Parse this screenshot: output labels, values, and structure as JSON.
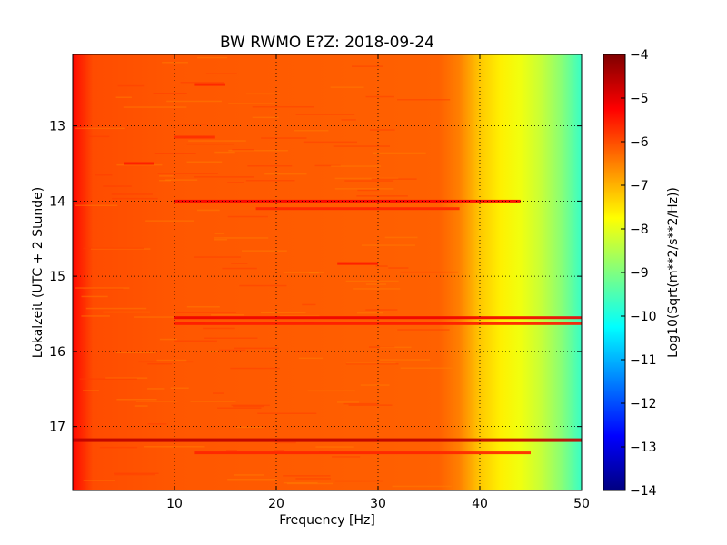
{
  "chart_data": {
    "type": "heatmap",
    "title": "BW RWMO E?Z: 2018-09-24",
    "xlabel": "Frequency [Hz]",
    "ylabel": "Lokalzeit (UTC + 2 Stunde)",
    "colorbar_label": "Log10(Sqrt(m**2/s**2/Hz))",
    "xlim": [
      0,
      50
    ],
    "ylim": [
      17.85,
      12.05
    ],
    "y_inverted": true,
    "clim": [
      -14,
      -4
    ],
    "colormap": "jet",
    "grid": true,
    "x_ticks": [
      10,
      20,
      30,
      40,
      50
    ],
    "x_tick_labels": [
      "10",
      "20",
      "30",
      "40",
      "50"
    ],
    "y_ticks": [
      13,
      14,
      15,
      16,
      17
    ],
    "y_tick_labels": [
      "13",
      "14",
      "15",
      "16",
      "17"
    ],
    "colorbar_ticks": [
      -4,
      -5,
      -6,
      -7,
      -8,
      -9,
      -10,
      -11,
      -12,
      -13,
      -14
    ],
    "colorbar_tick_labels": [
      "−4",
      "−5",
      "−6",
      "−7",
      "−8",
      "−9",
      "−10",
      "−11",
      "−12",
      "−13",
      "−14"
    ],
    "frequency_profile": [
      {
        "f": 0.0,
        "v": -5.3
      },
      {
        "f": 0.5,
        "v": -5.5
      },
      {
        "f": 2.0,
        "v": -6.0
      },
      {
        "f": 10.0,
        "v": -6.1
      },
      {
        "f": 36.0,
        "v": -6.2
      },
      {
        "f": 38.0,
        "v": -6.5
      },
      {
        "f": 40.0,
        "v": -7.2
      },
      {
        "f": 42.0,
        "v": -7.6
      },
      {
        "f": 44.0,
        "v": -7.9
      },
      {
        "f": 46.0,
        "v": -8.3
      },
      {
        "f": 48.0,
        "v": -8.9
      },
      {
        "f": 50.0,
        "v": -9.7
      }
    ],
    "events": [
      {
        "time": 14.0,
        "f_start": 10,
        "f_end": 44,
        "delta": 0.9
      },
      {
        "time": 14.1,
        "f_start": 18,
        "f_end": 38,
        "delta": 0.5
      },
      {
        "time": 15.55,
        "f_start": 10,
        "f_end": 50,
        "delta": 1.0
      },
      {
        "time": 15.63,
        "f_start": 10,
        "f_end": 50,
        "delta": 0.6
      },
      {
        "time": 17.18,
        "f_start": 0,
        "f_end": 50,
        "delta": 1.5
      },
      {
        "time": 17.35,
        "f_start": 12,
        "f_end": 45,
        "delta": 0.5
      },
      {
        "time": 13.5,
        "f_start": 5,
        "f_end": 8,
        "delta": 0.6
      },
      {
        "time": 12.45,
        "f_start": 12,
        "f_end": 15,
        "delta": 0.5
      },
      {
        "time": 14.83,
        "f_start": 26,
        "f_end": 30,
        "delta": 0.6
      },
      {
        "time": 13.15,
        "f_start": 10,
        "f_end": 14,
        "delta": 0.4
      }
    ]
  }
}
